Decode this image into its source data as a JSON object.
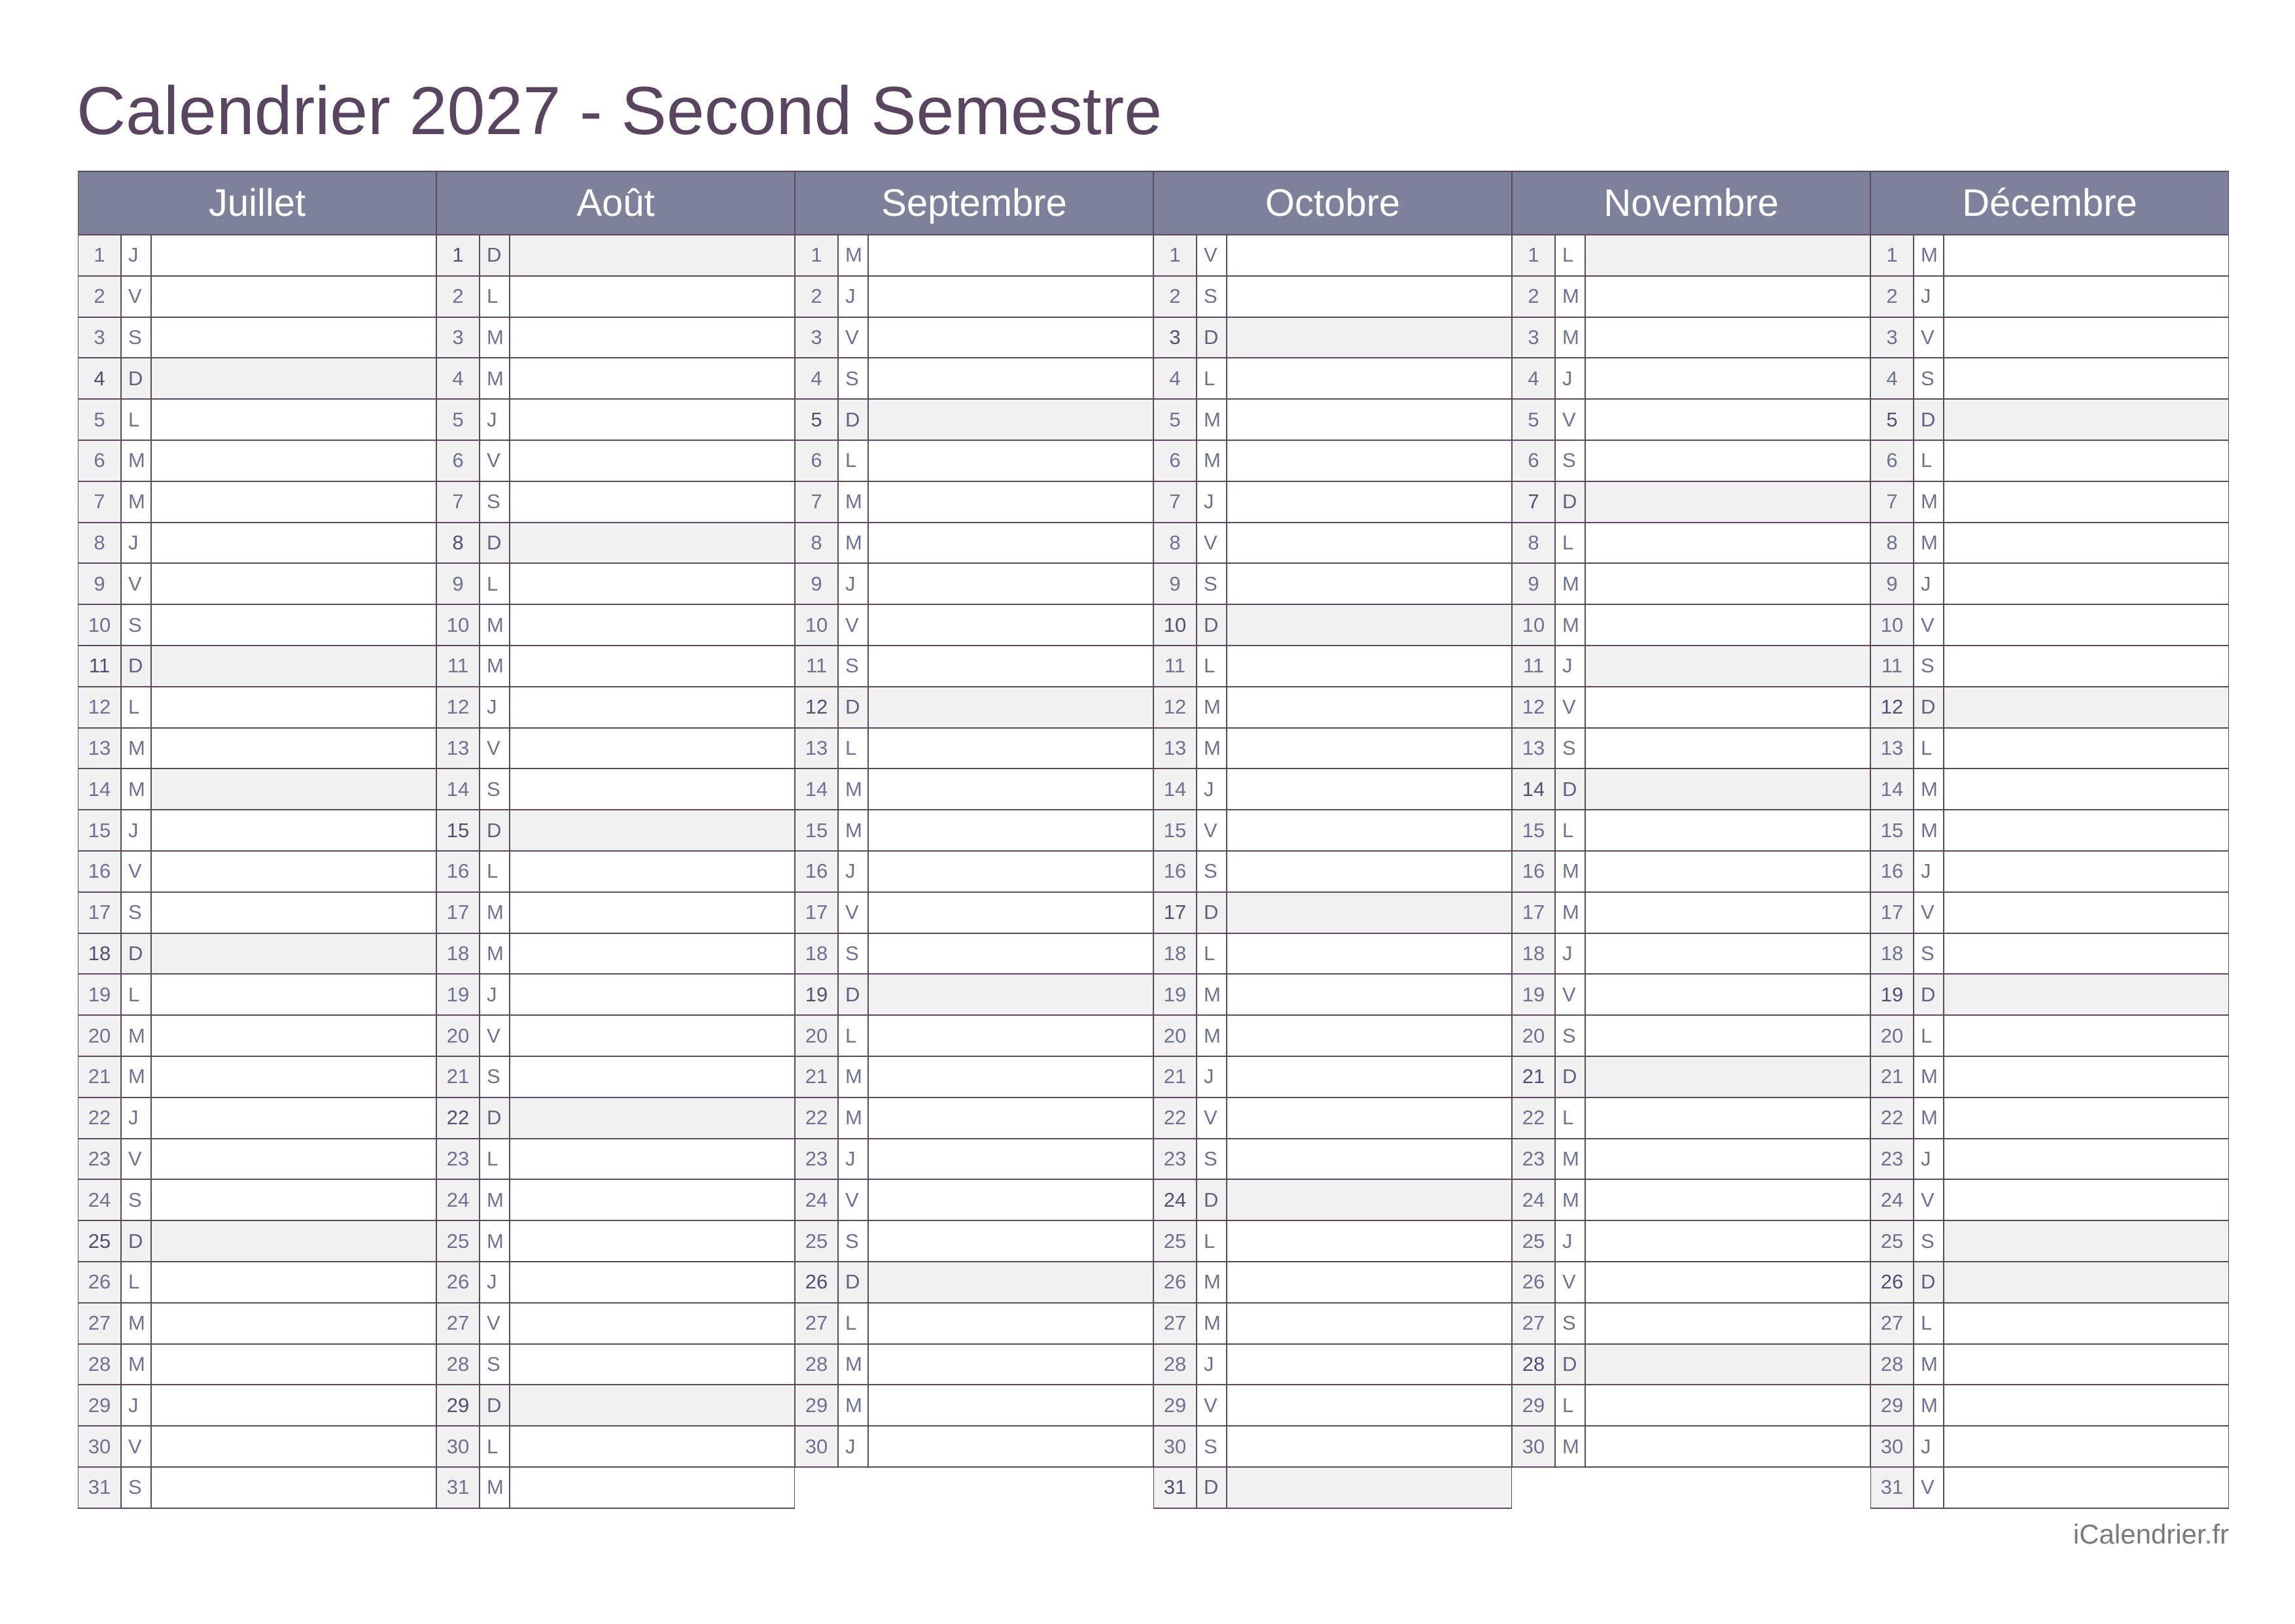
{
  "title": "Calendrier 2027 - Second Semestre",
  "footer": "iCalendrier.fr",
  "colors": {
    "header_bg": "#7d8199",
    "title": "#5a4560",
    "shaded": "#f1f1f1",
    "lines": "#5a4a5a"
  },
  "months": [
    {
      "name": "Juillet",
      "nums": [
        "1",
        "2",
        "3",
        "4",
        "5",
        "6",
        "7",
        "8",
        "9",
        "10",
        "11",
        "12",
        "13",
        "14",
        "15",
        "16",
        "17",
        "18",
        "19",
        "20",
        "21",
        "22",
        "23",
        "24",
        "25",
        "26",
        "27",
        "28",
        "29",
        "30",
        "31"
      ],
      "wd": [
        "J",
        "V",
        "S",
        "D",
        "L",
        "M",
        "M",
        "J",
        "V",
        "S",
        "D",
        "L",
        "M",
        "M",
        "J",
        "V",
        "S",
        "D",
        "L",
        "M",
        "M",
        "J",
        "V",
        "S",
        "D",
        "L",
        "M",
        "M",
        "J",
        "V",
        "S"
      ],
      "holidays": [
        14
      ]
    },
    {
      "name": "Août",
      "nums": [
        "1",
        "2",
        "3",
        "4",
        "5",
        "6",
        "7",
        "8",
        "9",
        "10",
        "11",
        "12",
        "13",
        "14",
        "15",
        "16",
        "17",
        "18",
        "19",
        "20",
        "21",
        "22",
        "23",
        "24",
        "25",
        "26",
        "27",
        "28",
        "29",
        "30",
        "31"
      ],
      "wd": [
        "D",
        "L",
        "M",
        "M",
        "J",
        "V",
        "S",
        "D",
        "L",
        "M",
        "M",
        "J",
        "V",
        "S",
        "D",
        "L",
        "M",
        "M",
        "J",
        "V",
        "S",
        "D",
        "L",
        "M",
        "M",
        "J",
        "V",
        "S",
        "D",
        "L",
        "M"
      ],
      "holidays": [
        15
      ]
    },
    {
      "name": "Septembre",
      "nums": [
        "1",
        "2",
        "3",
        "4",
        "5",
        "6",
        "7",
        "8",
        "9",
        "10",
        "11",
        "12",
        "13",
        "14",
        "15",
        "16",
        "17",
        "18",
        "19",
        "20",
        "21",
        "22",
        "23",
        "24",
        "25",
        "26",
        "27",
        "28",
        "29",
        "30"
      ],
      "wd": [
        "M",
        "J",
        "V",
        "S",
        "D",
        "L",
        "M",
        "M",
        "J",
        "V",
        "S",
        "D",
        "L",
        "M",
        "M",
        "J",
        "V",
        "S",
        "D",
        "L",
        "M",
        "M",
        "J",
        "V",
        "S",
        "D",
        "L",
        "M",
        "M",
        "J"
      ],
      "holidays": []
    },
    {
      "name": "Octobre",
      "nums": [
        "1",
        "2",
        "3",
        "4",
        "5",
        "6",
        "7",
        "8",
        "9",
        "10",
        "11",
        "12",
        "13",
        "14",
        "15",
        "16",
        "17",
        "18",
        "19",
        "20",
        "21",
        "22",
        "23",
        "24",
        "25",
        "26",
        "27",
        "28",
        "29",
        "30",
        "31"
      ],
      "wd": [
        "V",
        "S",
        "D",
        "L",
        "M",
        "M",
        "J",
        "V",
        "S",
        "D",
        "L",
        "M",
        "M",
        "J",
        "V",
        "S",
        "D",
        "L",
        "M",
        "M",
        "J",
        "V",
        "S",
        "D",
        "L",
        "M",
        "M",
        "J",
        "V",
        "S",
        "D"
      ],
      "holidays": []
    },
    {
      "name": "Novembre",
      "nums": [
        "1",
        "2",
        "3",
        "4",
        "5",
        "6",
        "7",
        "8",
        "9",
        "10",
        "11",
        "12",
        "13",
        "14",
        "15",
        "16",
        "17",
        "18",
        "19",
        "20",
        "21",
        "22",
        "23",
        "24",
        "25",
        "26",
        "27",
        "28",
        "29",
        "30"
      ],
      "wd": [
        "L",
        "M",
        "M",
        "J",
        "V",
        "S",
        "D",
        "L",
        "M",
        "M",
        "J",
        "V",
        "S",
        "D",
        "L",
        "M",
        "M",
        "J",
        "V",
        "S",
        "D",
        "L",
        "M",
        "M",
        "J",
        "V",
        "S",
        "D",
        "L",
        "M"
      ],
      "holidays": [
        1,
        11
      ]
    },
    {
      "name": "Décembre",
      "nums": [
        "1",
        "2",
        "3",
        "4",
        "5",
        "6",
        "7",
        "8",
        "9",
        "10",
        "11",
        "12",
        "13",
        "14",
        "15",
        "16",
        "17",
        "18",
        "19",
        "20",
        "21",
        "22",
        "23",
        "24",
        "25",
        "26",
        "27",
        "28",
        "29",
        "30",
        "31"
      ],
      "wd": [
        "M",
        "J",
        "V",
        "S",
        "D",
        "L",
        "M",
        "M",
        "J",
        "V",
        "S",
        "D",
        "L",
        "M",
        "M",
        "J",
        "V",
        "S",
        "D",
        "L",
        "M",
        "M",
        "J",
        "V",
        "S",
        "D",
        "L",
        "M",
        "M",
        "J",
        "V"
      ],
      "holidays": [
        25
      ]
    }
  ]
}
